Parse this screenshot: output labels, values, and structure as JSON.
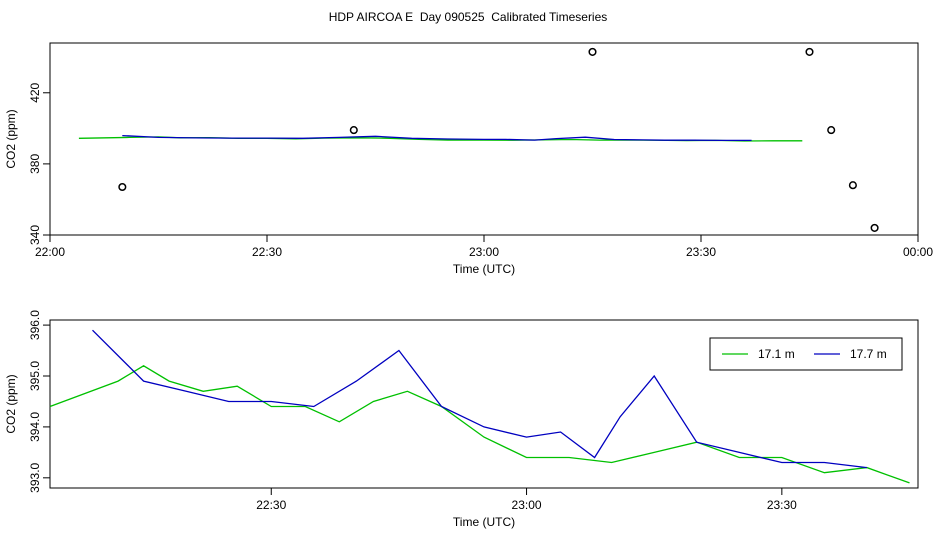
{
  "title": "HDP AIRCOA E  Day 090525  Calibrated Timeseries",
  "chart_data": [
    {
      "type": "line",
      "xlabel": "Time (UTC)",
      "ylabel": "CO2 (ppm)",
      "xlim": [
        "22:00",
        "00:00"
      ],
      "ylim": [
        340,
        448
      ],
      "x_ticks": [
        "22:00",
        "22:30",
        "23:00",
        "23:30",
        "00:00"
      ],
      "y_ticks": [
        340,
        380,
        420
      ],
      "series": [
        {
          "color": "#00c000",
          "x": [
            "22:04",
            "22:11",
            "22:15",
            "22:18",
            "22:22",
            "22:26",
            "22:30",
            "22:34",
            "22:38",
            "22:43",
            "22:47",
            "22:51",
            "22:55",
            "23:00",
            "23:04",
            "23:08",
            "23:12",
            "23:16",
            "23:20",
            "23:24",
            "23:28",
            "23:32",
            "23:36",
            "23:40",
            "23:44"
          ],
          "y": [
            394.4,
            394.9,
            395.2,
            394.7,
            394.8,
            394.4,
            394.4,
            394.1,
            394.5,
            394.7,
            394.4,
            393.8,
            393.4,
            393.4,
            393.3,
            393.5,
            393.7,
            393.4,
            393.4,
            393.3,
            393.1,
            393.2,
            392.9,
            393.0,
            393.0
          ]
        },
        {
          "color": "#0000c0",
          "x": [
            "22:10",
            "22:15",
            "22:20",
            "22:25",
            "22:30",
            "22:35",
            "22:40",
            "22:45",
            "22:50",
            "22:55",
            "23:00",
            "23:03",
            "23:07",
            "23:10",
            "23:14",
            "23:18",
            "23:22",
            "23:25",
            "23:29",
            "23:33",
            "23:37"
          ],
          "y": [
            395.9,
            394.9,
            394.6,
            394.5,
            394.5,
            394.4,
            394.9,
            395.5,
            394.4,
            394.0,
            393.8,
            393.8,
            393.4,
            394.2,
            395.0,
            393.7,
            393.5,
            393.3,
            393.3,
            393.2,
            393.2
          ]
        },
        {
          "type": "scatter",
          "marker": "open-circle",
          "x": [
            "22:10",
            "22:42",
            "23:15",
            "23:45",
            "23:48",
            "23:51",
            "23:54"
          ],
          "y": [
            367,
            399,
            443,
            443,
            399,
            368,
            344
          ]
        }
      ]
    },
    {
      "type": "line",
      "xlabel": "Time (UTC)",
      "ylabel": "CO2 (ppm)",
      "xlim": [
        "22:04",
        "23:46"
      ],
      "ylim": [
        392.8,
        396.1
      ],
      "x_ticks": [
        "22:30",
        "23:00",
        "23:30"
      ],
      "y_ticks": [
        "393.0",
        "394.0",
        "395.0",
        "396.0"
      ],
      "legend": {
        "position": "top-right",
        "entries": [
          "17.1 m",
          "17.7 m"
        ]
      },
      "series": [
        {
          "name": "17.1 m",
          "color": "#00c000",
          "x": [
            "22:04",
            "22:12",
            "22:15",
            "22:18",
            "22:22",
            "22:26",
            "22:30",
            "22:34",
            "22:38",
            "22:42",
            "22:46",
            "22:50",
            "22:55",
            "23:00",
            "23:05",
            "23:10",
            "23:15",
            "23:20",
            "23:25",
            "23:30",
            "23:35",
            "23:40",
            "23:45"
          ],
          "y": [
            394.4,
            394.9,
            395.2,
            394.9,
            394.7,
            394.8,
            394.4,
            394.4,
            394.1,
            394.5,
            394.7,
            394.4,
            393.8,
            393.4,
            393.4,
            393.3,
            393.5,
            393.7,
            393.4,
            393.4,
            393.1,
            393.2,
            392.9
          ]
        },
        {
          "name": "17.7 m",
          "color": "#0000c0",
          "x": [
            "22:09",
            "22:15",
            "22:20",
            "22:25",
            "22:30",
            "22:35",
            "22:40",
            "22:45",
            "22:50",
            "22:55",
            "23:00",
            "23:04",
            "23:08",
            "23:11",
            "23:15",
            "23:20",
            "23:25",
            "23:30",
            "23:35",
            "23:40"
          ],
          "y": [
            395.9,
            394.9,
            394.7,
            394.5,
            394.5,
            394.4,
            394.9,
            395.5,
            394.4,
            394.0,
            393.8,
            393.9,
            393.4,
            394.2,
            395.0,
            393.7,
            393.5,
            393.3,
            393.3,
            393.2
          ]
        }
      ]
    }
  ]
}
